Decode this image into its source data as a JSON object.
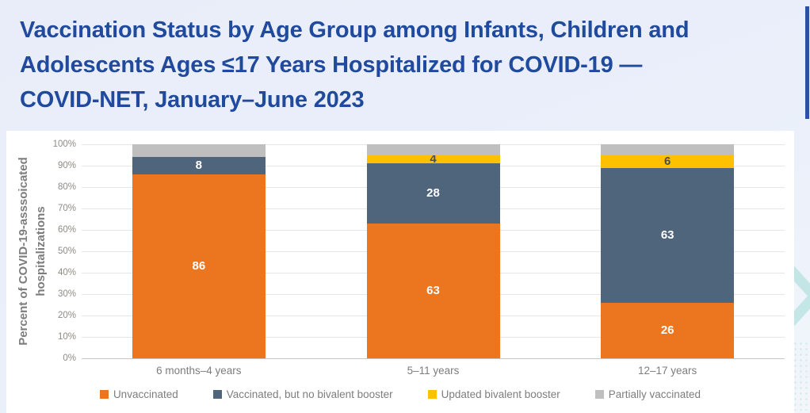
{
  "slide": {
    "title_lines": [
      "Vaccination Status by Age Group among Infants, Children and",
      "Adolescents Ages ≤17 Years Hospitalized for COVID-19 —",
      "COVID-NET, January–June 2023"
    ],
    "title_color": "#1F4A9E",
    "accent_stripe_color": "#2B51A4",
    "background_color": "#E9EDF9",
    "decor_color": "#8FD6CD"
  },
  "chart_data": {
    "type": "bar",
    "stacked": true,
    "categories": [
      "6 months–4 years",
      "5–11 years",
      "12–17 years"
    ],
    "series": [
      {
        "name": "Unvaccinated",
        "color": "#EC761F",
        "values": [
          86,
          63,
          26
        ],
        "data_labels": [
          "86",
          "63",
          "26"
        ],
        "label_color": "#FFFFFF"
      },
      {
        "name": "Vaccinated, but no bivalent booster",
        "color": "#4E657C",
        "values": [
          8,
          28,
          63
        ],
        "data_labels": [
          "8",
          "28",
          "63"
        ],
        "label_color": "#FFFFFF"
      },
      {
        "name": "Updated bivalent booster",
        "color": "#FFC000",
        "values": [
          0,
          4,
          6
        ],
        "data_labels": [
          "",
          "4",
          "6"
        ],
        "label_color": "#4D4D4D"
      },
      {
        "name": "Partially vaccinated",
        "color": "#BFBFBF",
        "values": [
          6,
          5,
          5
        ],
        "data_labels": [
          "",
          "",
          ""
        ],
        "label_color": "#4D4D4D"
      }
    ],
    "ylabel": "Percent of COVID-19-asssoicated hospitalizations",
    "ylabel_lines": [
      "Percent of COVID-19-asssoicated",
      "hospitalizations"
    ],
    "xlabel": "",
    "ylim": [
      0,
      100
    ],
    "yticks": [
      "100%",
      "90%",
      "80%",
      "70%",
      "60%",
      "50%",
      "40%",
      "30%",
      "20%",
      "10%",
      "0%"
    ],
    "grid": true,
    "legend_position": "bottom"
  }
}
